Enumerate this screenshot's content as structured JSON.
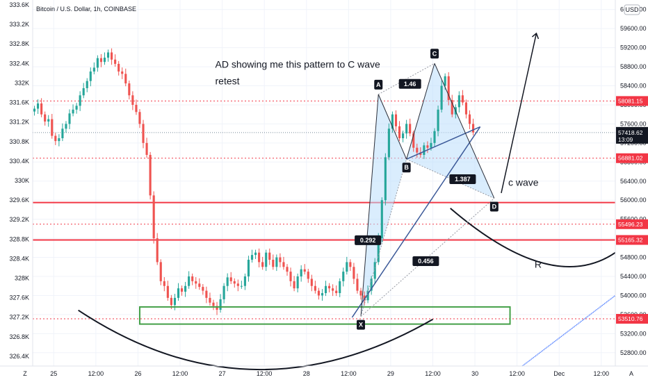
{
  "header": {
    "symbol_label": "Bitcoin / U.S. Dollar, 1h, COINBASE"
  },
  "currency_button": {
    "label": "USD"
  },
  "footer": {
    "z_label": "Z",
    "a_label": "A"
  },
  "colors": {
    "up": "#26a69a",
    "down": "#ef5350",
    "level_red": "#f23645",
    "pattern_fill": "#bbdefb",
    "pattern_line": "#2962ff",
    "current_price": "#131722",
    "support_box": "#43a047"
  },
  "chart_data": {
    "type": "candlestick",
    "left_axis": {
      "ylim": [
        326.2,
        333.7
      ],
      "ticks": [
        326.4,
        326.8,
        327.2,
        327.6,
        328,
        328.4,
        328.8,
        329.2,
        329.6,
        330,
        330.4,
        330.8,
        331.2,
        331.6,
        332,
        332.4,
        332.8,
        333.2,
        333.6
      ],
      "tick_labels": [
        "326.4K",
        "326.8K",
        "327.2K",
        "327.6K",
        "328K",
        "328.4K",
        "328.8K",
        "329.2K",
        "329.6K",
        "330K",
        "330.4K",
        "330.8K",
        "331.2K",
        "331.6K",
        "332K",
        "332.4K",
        "332.8K",
        "333.2K",
        "333.6K"
      ]
    },
    "right_axis": {
      "ylim": [
        52520,
        60200
      ],
      "ticks": [
        52800,
        53200,
        53600,
        54000,
        54400,
        54800,
        55200,
        55600,
        56000,
        56400,
        56800,
        57200,
        57600,
        58000,
        58400,
        58800,
        59200,
        59600,
        60000
      ],
      "tick_labels": [
        "52800.00",
        "53200.00",
        "53600.00",
        "54000.00",
        "54400.00",
        "54800.00",
        "55200.00",
        "55600.00",
        "56000.00",
        "56400.00",
        "56800.00",
        "57200.00",
        "57600.00",
        "58000.00",
        "58400.00",
        "58800.00",
        "59200.00",
        "59600.00",
        "60000.00"
      ]
    },
    "x_ticks": [
      {
        "label": "25",
        "h": 6
      },
      {
        "label": "12:00",
        "h": 18
      },
      {
        "label": "26",
        "h": 30
      },
      {
        "label": "12:00",
        "h": 42
      },
      {
        "label": "27",
        "h": 54
      },
      {
        "label": "12:00",
        "h": 66
      },
      {
        "label": "28",
        "h": 78
      },
      {
        "label": "12:00",
        "h": 90
      },
      {
        "label": "29",
        "h": 102
      },
      {
        "label": "12:00",
        "h": 114
      },
      {
        "label": "30",
        "h": 126
      },
      {
        "label": "12:00",
        "h": 138
      },
      {
        "label": "Dec",
        "h": 150
      },
      {
        "label": "12:00",
        "h": 162
      }
    ],
    "x_range_hours": [
      0,
      166
    ],
    "price_levels": [
      {
        "value": 58081.15,
        "label": "58081.15",
        "style": "dotted"
      },
      {
        "value": 56881.02,
        "label": "56881.02",
        "style": "dotted"
      },
      {
        "value": 55950,
        "label": "",
        "style": "solid"
      },
      {
        "value": 55496.23,
        "label": "55496.23",
        "style": "dotted"
      },
      {
        "value": 55165.32,
        "label": "55165.32",
        "style": "solid"
      },
      {
        "value": 53510.76,
        "label": "53510.76",
        "style": "dotted"
      }
    ],
    "current_price": {
      "value": 57418.62,
      "label": "57418.62",
      "countdown": "13:09"
    },
    "harmonic_points": [
      {
        "name": "X",
        "h": 93.5,
        "price": 53560
      },
      {
        "name": "A",
        "h": 98.5,
        "price": 58220
      },
      {
        "name": "B",
        "h": 106.5,
        "price": 56860
      },
      {
        "name": "C",
        "h": 114.5,
        "price": 58870
      },
      {
        "name": "D",
        "h": 131.5,
        "price": 56040
      }
    ],
    "ratios": [
      {
        "label": "1.46",
        "h": 107.5,
        "price": 58440
      },
      {
        "label": "1.387",
        "h": 122.5,
        "price": 56440
      },
      {
        "label": "0.292",
        "h": 95.5,
        "price": 55160
      },
      {
        "label": "0.456",
        "h": 112,
        "price": 54720
      }
    ],
    "annotations": [
      {
        "text": "AD showing me this pattern to C wave",
        "h": 52,
        "price": 58780
      },
      {
        "text": "retest",
        "h": 52,
        "price": 58430
      },
      {
        "text": "c wave",
        "h": 135.5,
        "price": 56300
      },
      {
        "text": "R",
        "h": 143,
        "price": 54580
      }
    ],
    "candles_hourly_mid_price": [
      57920,
      58030,
      57800,
      57650,
      57700,
      57350,
      57240,
      57300,
      57500,
      57600,
      57820,
      57900,
      57980,
      58200,
      58350,
      58500,
      58700,
      58780,
      58980,
      58900,
      58990,
      59100,
      58950,
      58860,
      58700,
      58650,
      58450,
      58200,
      58000,
      57850,
      57600,
      57200,
      56950,
      56100,
      55200,
      54700,
      54300,
      54200,
      53950,
      53800,
      53950,
      54150,
      54080,
      54200,
      54400,
      54300,
      54250,
      54180,
      54100,
      53950,
      53850,
      53780,
      53700,
      53920,
      54200,
      54380,
      54300,
      54250,
      54200,
      54200,
      54400,
      54750,
      54850,
      54900,
      54700,
      54600,
      54900,
      54750,
      54600,
      54800,
      54700,
      54600,
      54500,
      54300,
      54150,
      54400,
      54550,
      54500,
      54350,
      54200,
      54100,
      54000,
      54050,
      54200,
      54150,
      54100,
      54050,
      54300,
      54500,
      54700,
      54600,
      54350,
      54100,
      54000,
      53900,
      54100,
      54350,
      54700,
      55200,
      56000,
      56900,
      57500,
      57800,
      57550,
      57300,
      57400,
      57600,
      57400,
      57100,
      57000,
      56950,
      57150,
      57100,
      57200,
      57450,
      57900,
      58400,
      58600,
      58100,
      57800,
      57950,
      58200,
      58050,
      57800,
      57600,
      57420
    ]
  }
}
